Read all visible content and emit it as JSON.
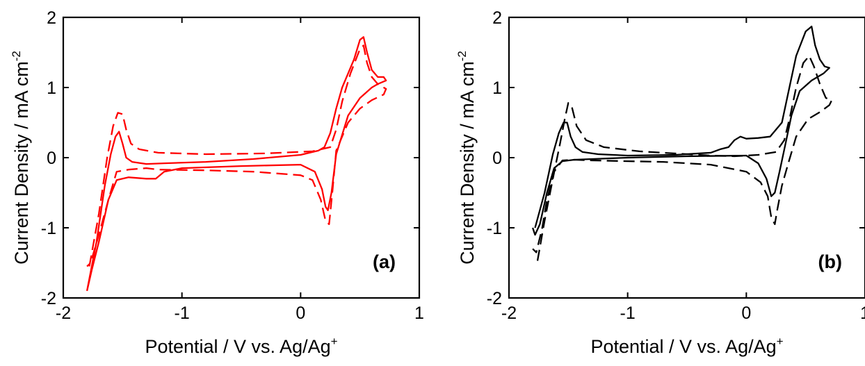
{
  "chart_data": [
    {
      "type": "line",
      "panel_label": "(a)",
      "xlabel": "Potential / V vs. Ag/Ag",
      "xlabel_sup": "+",
      "ylabel": "Current Density / mA cm",
      "ylabel_sup": "-2",
      "xlim": [
        -2,
        1
      ],
      "ylim": [
        -2,
        2
      ],
      "xticks": [
        -2,
        -1,
        0,
        1
      ],
      "yticks": [
        -2,
        -1,
        0,
        1,
        2
      ],
      "xtick_labels": [
        "-2",
        "-1",
        "0",
        "1"
      ],
      "ytick_labels": [
        "-2",
        "-1",
        "0",
        "1",
        "2"
      ],
      "grid": false,
      "color": "#ff0000",
      "series": [
        {
          "style": "solid",
          "x": [
            -1.8,
            -1.72,
            -1.65,
            -1.6,
            -1.56,
            -1.53,
            -1.5,
            -1.47,
            -1.42,
            -1.3,
            -1.15,
            -0.8,
            -0.4,
            0.0,
            0.15,
            0.2,
            0.25,
            0.3,
            0.35,
            0.4,
            0.45,
            0.5,
            0.53,
            0.56,
            0.6,
            0.65,
            0.7,
            0.72,
            0.65,
            0.6,
            0.5,
            0.4,
            0.3,
            0.26,
            0.23,
            0.21,
            0.18,
            0.12,
            0.0,
            -0.5,
            -1.0,
            -1.15,
            -1.22,
            -1.3,
            -1.45,
            -1.55,
            -1.62,
            -1.7,
            -1.76,
            -1.8
          ],
          "y": [
            -1.9,
            -1.2,
            -0.4,
            0.05,
            0.3,
            0.37,
            0.2,
            0.0,
            -0.06,
            -0.09,
            -0.08,
            -0.06,
            -0.02,
            0.04,
            0.1,
            0.15,
            0.35,
            0.7,
            1.0,
            1.2,
            1.4,
            1.68,
            1.72,
            1.5,
            1.25,
            1.15,
            1.15,
            1.1,
            1.05,
            1.0,
            0.85,
            0.6,
            0.05,
            -0.5,
            -0.75,
            -0.7,
            -0.45,
            -0.2,
            -0.1,
            -0.12,
            -0.15,
            -0.2,
            -0.3,
            -0.3,
            -0.28,
            -0.32,
            -0.6,
            -1.2,
            -1.6,
            -1.9
          ]
        },
        {
          "style": "dashed",
          "x": [
            -1.78,
            -1.7,
            -1.63,
            -1.58,
            -1.54,
            -1.5,
            -1.47,
            -1.43,
            -1.36,
            -1.2,
            -0.8,
            -0.3,
            0.1,
            0.25,
            0.3,
            0.35,
            0.42,
            0.5,
            0.53,
            0.56,
            0.6,
            0.65,
            0.72,
            0.7,
            0.6,
            0.5,
            0.4,
            0.3,
            0.27,
            0.24,
            0.21,
            0.17,
            0.1,
            0.0,
            -0.4,
            -0.8,
            -1.2,
            -1.3,
            -1.45,
            -1.55,
            -1.62,
            -1.7,
            -1.77,
            -1.8
          ],
          "y": [
            -1.55,
            -0.8,
            0.0,
            0.45,
            0.64,
            0.62,
            0.4,
            0.2,
            0.12,
            0.07,
            0.05,
            0.06,
            0.09,
            0.15,
            0.4,
            0.8,
            1.2,
            1.55,
            1.6,
            1.35,
            1.15,
            1.05,
            0.98,
            0.9,
            0.82,
            0.7,
            0.5,
            0.1,
            -0.45,
            -0.95,
            -0.9,
            -0.6,
            -0.32,
            -0.25,
            -0.2,
            -0.18,
            -0.17,
            -0.15,
            -0.17,
            -0.2,
            -0.6,
            -1.1,
            -1.5,
            -1.55
          ]
        }
      ]
    },
    {
      "type": "line",
      "panel_label": "(b)",
      "xlabel": "Potential / V vs. Ag/Ag",
      "xlabel_sup": "+",
      "ylabel": "Current Density / mA cm",
      "ylabel_sup": "-2",
      "xlim": [
        -2,
        1
      ],
      "ylim": [
        -2,
        2
      ],
      "xticks": [
        -2,
        -1,
        0,
        1
      ],
      "yticks": [
        -2,
        -1,
        0,
        1,
        2
      ],
      "xtick_labels": [
        "-2",
        "-1",
        "0",
        "1"
      ],
      "ytick_labels": [
        "-2",
        "-1",
        "0",
        "1",
        "2"
      ],
      "grid": false,
      "color": "#000000",
      "series": [
        {
          "style": "solid",
          "x": [
            -1.78,
            -1.7,
            -1.63,
            -1.58,
            -1.54,
            -1.51,
            -1.48,
            -1.44,
            -1.38,
            -1.25,
            -1.0,
            -0.6,
            -0.3,
            -0.22,
            -0.15,
            -0.1,
            -0.05,
            0.0,
            0.1,
            0.2,
            0.3,
            0.35,
            0.42,
            0.5,
            0.55,
            0.58,
            0.62,
            0.66,
            0.7,
            0.65,
            0.55,
            0.45,
            0.38,
            0.33,
            0.28,
            0.24,
            0.21,
            0.17,
            0.1,
            0.0,
            -0.5,
            -1.0,
            -1.3,
            -1.45,
            -1.55,
            -1.62,
            -1.68,
            -1.74,
            -1.78,
            -1.8
          ],
          "y": [
            -1.0,
            -0.5,
            0.05,
            0.35,
            0.5,
            0.5,
            0.3,
            0.15,
            0.08,
            0.05,
            0.03,
            0.04,
            0.07,
            0.12,
            0.15,
            0.25,
            0.3,
            0.27,
            0.28,
            0.3,
            0.5,
            0.9,
            1.45,
            1.8,
            1.87,
            1.6,
            1.4,
            1.3,
            1.28,
            1.2,
            1.1,
            0.95,
            0.6,
            0.2,
            -0.2,
            -0.5,
            -0.55,
            -0.3,
            -0.08,
            0.03,
            0.02,
            0.0,
            -0.02,
            -0.03,
            -0.05,
            -0.15,
            -0.5,
            -0.95,
            -1.1,
            -1.0
          ]
        },
        {
          "style": "dashed",
          "x": [
            -1.76,
            -1.7,
            -1.63,
            -1.57,
            -1.53,
            -1.5,
            -1.47,
            -1.43,
            -1.35,
            -1.2,
            -0.9,
            -0.5,
            -0.3,
            -0.1,
            0.1,
            0.25,
            0.32,
            0.37,
            0.42,
            0.48,
            0.53,
            0.57,
            0.62,
            0.67,
            0.72,
            0.7,
            0.62,
            0.52,
            0.42,
            0.35,
            0.3,
            0.26,
            0.24,
            0.21,
            0.18,
            0.12,
            0.0,
            -0.3,
            -0.7,
            -1.0,
            -1.3,
            -1.45,
            -1.55,
            -1.62,
            -1.68,
            -1.72,
            -1.77,
            -1.8
          ],
          "y": [
            -1.47,
            -0.9,
            -0.3,
            0.2,
            0.55,
            0.78,
            0.72,
            0.45,
            0.25,
            0.15,
            0.09,
            0.05,
            0.03,
            0.02,
            0.04,
            0.08,
            0.25,
            0.6,
            1.0,
            1.35,
            1.45,
            1.3,
            1.05,
            0.85,
            0.82,
            0.75,
            0.65,
            0.55,
            0.3,
            -0.1,
            -0.4,
            -0.75,
            -0.95,
            -0.85,
            -0.55,
            -0.35,
            -0.2,
            -0.1,
            -0.06,
            -0.05,
            -0.04,
            -0.03,
            -0.04,
            -0.2,
            -0.6,
            -1.0,
            -1.35,
            -1.3
          ]
        }
      ]
    }
  ]
}
